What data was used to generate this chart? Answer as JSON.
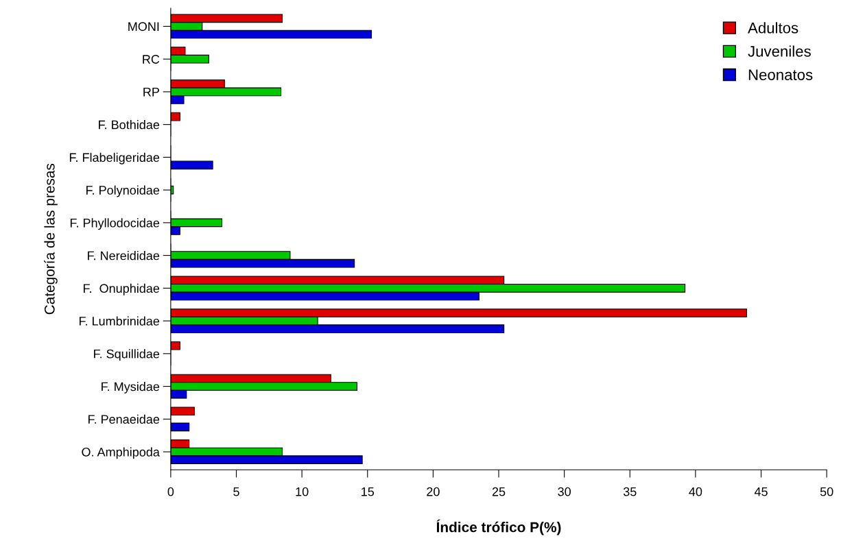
{
  "chart_data": {
    "type": "bar",
    "orientation": "horizontal",
    "xlabel": "Índice trófico P(%)",
    "ylabel": "Categoría de las presas",
    "categories": [
      "MONI",
      "RC",
      "RP",
      "F. Bothidae",
      "F. Flabeligeridae",
      "F. Polynoidae",
      "F. Phyllodocidae",
      "F. Nereididae",
      "F.  Onuphidae",
      "F. Lumbrinidae",
      "F. Squillidae",
      "F. Mysidae",
      "F. Penaeidae",
      "O. Amphipoda"
    ],
    "series": [
      {
        "name": "Adultos",
        "color": "#e00000",
        "values": [
          8.5,
          1.1,
          4.1,
          0.7,
          0,
          0,
          0,
          0,
          25.4,
          43.9,
          0.7,
          12.2,
          1.8,
          1.4
        ]
      },
      {
        "name": "Juveniles",
        "color": "#00c800",
        "values": [
          2.4,
          2.9,
          8.4,
          0,
          0,
          0.2,
          3.9,
          9.1,
          39.2,
          11.2,
          0,
          14.2,
          0,
          8.5
        ]
      },
      {
        "name": "Neonatos",
        "color": "#0000d8",
        "values": [
          15.3,
          0,
          1.0,
          0,
          3.2,
          0,
          0.7,
          14.0,
          23.5,
          25.4,
          0,
          1.2,
          1.4,
          14.6
        ]
      }
    ],
    "xlim": [
      0,
      50
    ],
    "xticks": [
      0,
      5,
      10,
      15,
      20,
      25,
      30,
      35,
      40,
      45,
      50
    ],
    "grid": false,
    "legend": "top right"
  }
}
